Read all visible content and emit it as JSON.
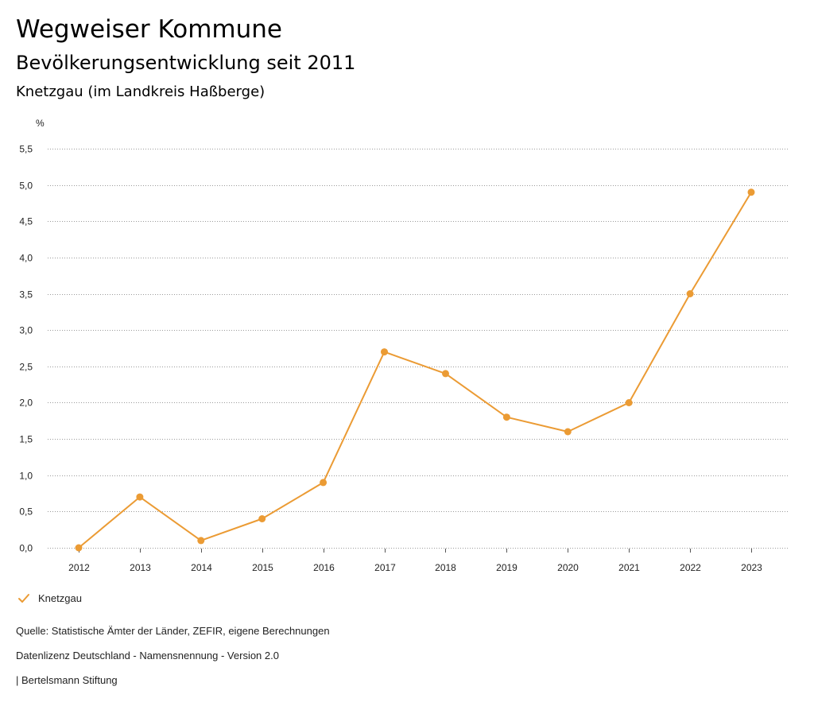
{
  "header": {
    "title": "Wegweiser Kommune",
    "subtitle": "Bevölkerungsentwicklung seit 2011",
    "region": "Knetzgau (im Landkreis Haßberge)"
  },
  "chart_data": {
    "type": "line",
    "title": "Bevölkerungsentwicklung seit 2011",
    "xlabel": "",
    "ylabel": "%",
    "categories": [
      "2012",
      "2013",
      "2014",
      "2015",
      "2016",
      "2017",
      "2018",
      "2019",
      "2020",
      "2021",
      "2022",
      "2023"
    ],
    "series": [
      {
        "name": "Knetzgau",
        "color": "#eb9b34",
        "values": [
          0.0,
          0.7,
          0.1,
          0.4,
          0.9,
          2.7,
          2.4,
          1.8,
          1.6,
          2.0,
          3.5,
          4.9
        ]
      }
    ],
    "ylim": [
      0,
      5.5
    ],
    "yticks": [
      0,
      0.5,
      1.0,
      1.5,
      2.0,
      2.5,
      3.0,
      3.5,
      4.0,
      4.5,
      5.0,
      5.5
    ],
    "ytick_labels": [
      "0,0",
      "0,5",
      "1,0",
      "1,5",
      "2,0",
      "2,5",
      "3,0",
      "3,5",
      "4,0",
      "4,5",
      "5,0",
      "5,5"
    ],
    "grid": true,
    "legend": "bottom-left"
  },
  "legend": {
    "label": "Knetzgau",
    "icon": "checkmark-icon"
  },
  "footer": {
    "source": "Quelle: Statistische Ämter der Länder, ZEFIR, eigene Berechnungen",
    "license": "Datenlizenz Deutschland - Namensnennung - Version 2.0",
    "publisher": "| Bertelsmann Stiftung"
  }
}
